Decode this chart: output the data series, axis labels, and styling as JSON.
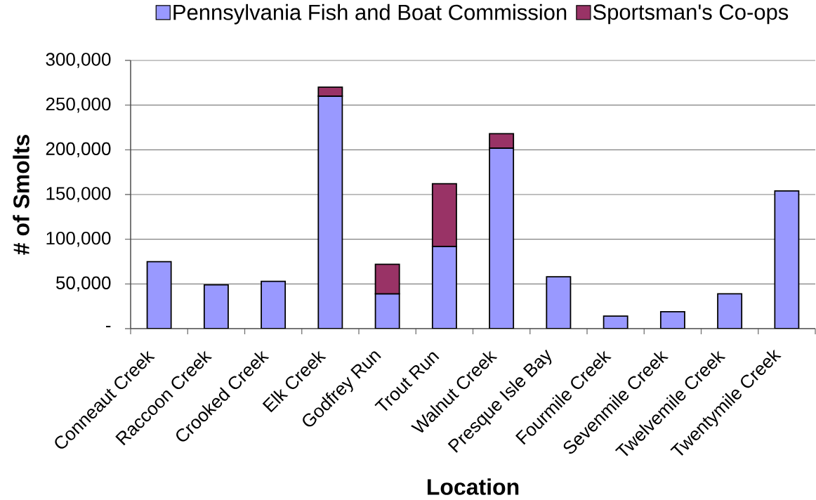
{
  "chart_data": {
    "type": "bar",
    "xlabel": "Location",
    "ylabel": "# of Smolts",
    "categories": [
      "Conneaut Creek",
      "Raccoon Creek",
      "Crooked Creek",
      "Elk Creek",
      "Godfrey Run",
      "Trout Run",
      "Walnut Creek",
      "Presque Isle Bay",
      "Fourmile Creek",
      "Sevenmile Creek",
      "Twelvemile Creek",
      "Twentymile Creek"
    ],
    "series": [
      {
        "name": "Pennsylvania Fish and Boat Commission",
        "color": "#9999ff",
        "values": [
          75000,
          49000,
          53000,
          260000,
          39000,
          92000,
          202000,
          58000,
          14000,
          19000,
          39000,
          154000
        ]
      },
      {
        "name": "Sportsman's Co-ops",
        "color": "#993366",
        "values": [
          null,
          null,
          null,
          10000,
          33000,
          70000,
          16000,
          null,
          null,
          null,
          null,
          null
        ]
      }
    ],
    "stacked": true,
    "ylim": [
      0,
      300000
    ],
    "yticks": [
      {
        "value": 0,
        "label": "-"
      },
      {
        "value": 50000,
        "label": "50,000"
      },
      {
        "value": 100000,
        "label": "100,000"
      },
      {
        "value": 150000,
        "label": "150,000"
      },
      {
        "value": 200000,
        "label": "200,000"
      },
      {
        "value": 250000,
        "label": "250,000"
      },
      {
        "value": 300000,
        "label": "300,000"
      }
    ],
    "grid": "y",
    "legend": "top"
  }
}
